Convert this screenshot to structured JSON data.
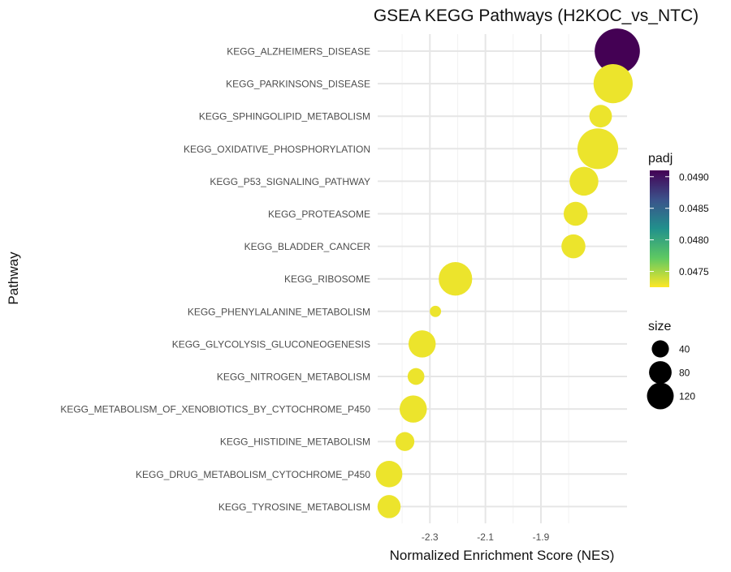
{
  "chart_data": {
    "type": "scatter",
    "title": "GSEA KEGG Pathways (H2KOC_vs_NTC)",
    "xlabel": "Normalized Enrichment Score (NES)",
    "ylabel": "Pathway",
    "xlim": [
      -2.45,
      -1.625
    ],
    "x_ticks": [
      -2.3,
      -2.1,
      -1.9
    ],
    "x_tick_labels": [
      "-2.3",
      "-2.1",
      "-1.9"
    ],
    "grid": true,
    "points": [
      {
        "pathway": "KEGG_ALZHEIMERS_DISEASE",
        "nes": -1.625,
        "size": 160,
        "padj": 0.0491
      },
      {
        "pathway": "KEGG_PARKINSONS_DISEASE",
        "nes": -1.64,
        "size": 120,
        "padj": 0.0473
      },
      {
        "pathway": "KEGG_SPHINGOLIPID_METABOLISM",
        "nes": -1.685,
        "size": 40,
        "padj": 0.0473
      },
      {
        "pathway": "KEGG_OXIDATIVE_PHOSPHORYLATION",
        "nes": -1.695,
        "size": 130,
        "padj": 0.0473
      },
      {
        "pathway": "KEGG_P53_SIGNALING_PATHWAY",
        "nes": -1.745,
        "size": 65,
        "padj": 0.0473
      },
      {
        "pathway": "KEGG_PROTEASOME",
        "nes": -1.775,
        "size": 45,
        "padj": 0.0473
      },
      {
        "pathway": "KEGG_BLADDER_CANCER",
        "nes": -1.783,
        "size": 45,
        "padj": 0.0473
      },
      {
        "pathway": "KEGG_RIBOSOME",
        "nes": -2.208,
        "size": 88,
        "padj": 0.0473
      },
      {
        "pathway": "KEGG_PHENYLALANINE_METABOLISM",
        "nes": -2.28,
        "size": 10,
        "padj": 0.0473
      },
      {
        "pathway": "KEGG_GLYCOLYSIS_GLUCONEOGENESIS",
        "nes": -2.328,
        "size": 58,
        "padj": 0.0473
      },
      {
        "pathway": "KEGG_NITROGEN_METABOLISM",
        "nes": -2.35,
        "size": 22,
        "padj": 0.0473
      },
      {
        "pathway": "KEGG_METABOLISM_OF_XENOBIOTICS_BY_CYTOCHROME_P450",
        "nes": -2.36,
        "size": 58,
        "padj": 0.0473
      },
      {
        "pathway": "KEGG_HISTIDINE_METABOLISM",
        "nes": -2.39,
        "size": 28,
        "padj": 0.0473
      },
      {
        "pathway": "KEGG_DRUG_METABOLISM_CYTOCHROME_P450",
        "nes": -2.447,
        "size": 55,
        "padj": 0.0473
      },
      {
        "pathway": "KEGG_TYROSINE_METABOLISM",
        "nes": -2.447,
        "size": 42,
        "padj": 0.0473
      }
    ],
    "color_legend": {
      "title": "padj",
      "min": 0.04725,
      "max": 0.0491,
      "ticks": [
        0.0475,
        0.048,
        0.0485,
        0.049
      ],
      "tick_labels": [
        "0.0475",
        "0.0480",
        "0.0485",
        "0.0490"
      ],
      "colors": [
        "#fde725",
        "#5ec962",
        "#21918c",
        "#3b528b",
        "#440154"
      ]
    },
    "size_legend": {
      "title": "size",
      "entries": [
        {
          "value": 40,
          "label": "40"
        },
        {
          "value": 80,
          "label": "80"
        },
        {
          "value": 120,
          "label": "120"
        }
      ]
    },
    "legend_position": "right"
  }
}
